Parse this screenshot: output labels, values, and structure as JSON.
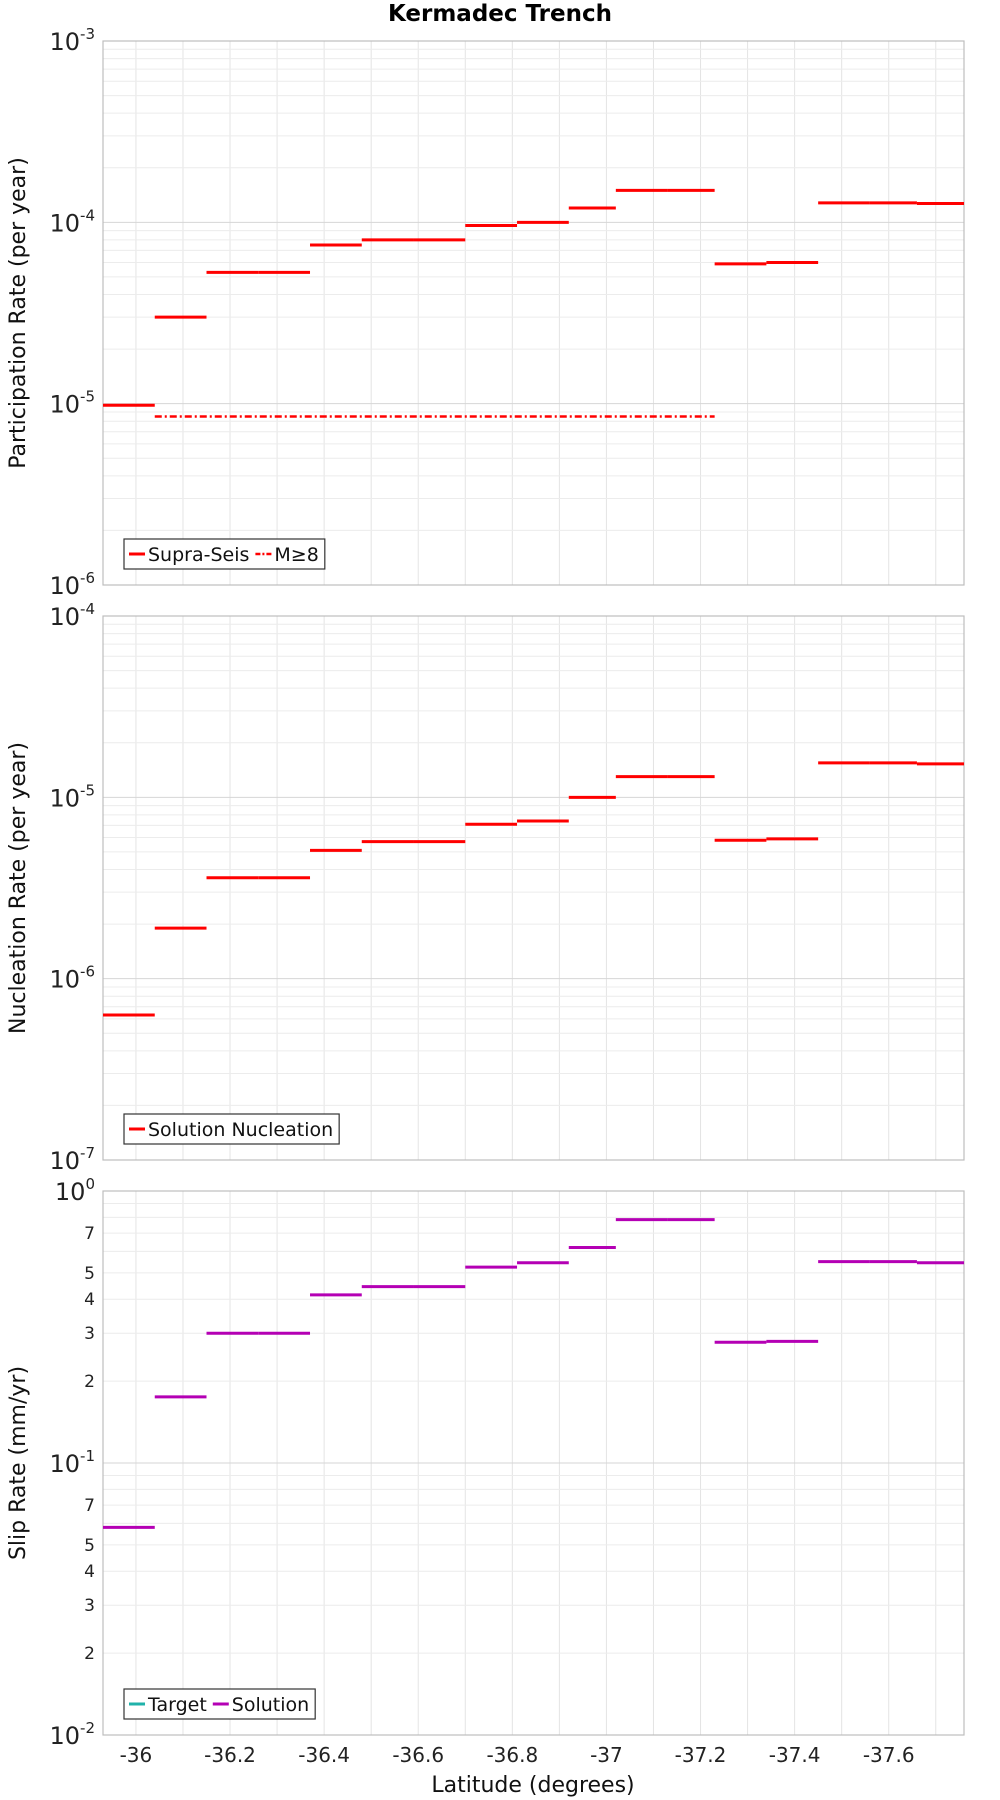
{
  "figure": {
    "title": "Kermadec Trench",
    "xlabel": "Latitude (degrees)"
  },
  "chart_data": [
    {
      "type": "line",
      "subtype": "step",
      "ylabel": "Participation Rate (per year)",
      "yscale": "log",
      "ylim": [
        1e-06,
        0.001
      ],
      "xlim": [
        -35.93,
        -37.76
      ],
      "y_tick_labels": [
        {
          "base": "10",
          "exp": "-6",
          "value": 1e-06
        },
        {
          "base": "10",
          "exp": "-5",
          "value": 1e-05
        },
        {
          "base": "10",
          "exp": "-4",
          "value": 0.0001
        },
        {
          "base": "10",
          "exp": "-3",
          "value": 0.001
        }
      ],
      "legend": [
        {
          "label": "Supra-Seis",
          "color": "#ff0000",
          "style": "solid"
        },
        {
          "label": "M≥8",
          "color": "#ff0000",
          "style": "dashdot"
        }
      ],
      "series": [
        {
          "name": "Supra-Seis",
          "color": "#ff0000",
          "style": "solid",
          "segments": [
            [
              -35.93,
              -36.04,
              9.8e-06
            ],
            [
              -36.04,
              -36.15,
              3e-05
            ],
            [
              -36.15,
              -36.26,
              5.3e-05
            ],
            [
              -36.26,
              -36.37,
              5.3e-05
            ],
            [
              -36.37,
              -36.48,
              7.5e-05
            ],
            [
              -36.48,
              -36.59,
              8e-05
            ],
            [
              -36.59,
              -36.7,
              8e-05
            ],
            [
              -36.7,
              -36.81,
              9.6e-05
            ],
            [
              -36.81,
              -36.92,
              0.0001
            ],
            [
              -36.92,
              -37.02,
              0.00012
            ],
            [
              -37.02,
              -37.13,
              0.00015
            ],
            [
              -37.13,
              -37.23,
              0.00015
            ],
            [
              -37.23,
              -37.34,
              5.9e-05
            ],
            [
              -37.34,
              -37.45,
              6e-05
            ],
            [
              -37.45,
              -37.56,
              0.000128
            ],
            [
              -37.56,
              -37.66,
              0.000128
            ],
            [
              -37.66,
              -37.76,
              0.000127
            ]
          ]
        },
        {
          "name": "M≥8",
          "color": "#ff0000",
          "style": "dashdot",
          "segments": [
            [
              -36.04,
              -37.23,
              8.5e-06
            ]
          ]
        }
      ]
    },
    {
      "type": "line",
      "subtype": "step",
      "ylabel": "Nucleation Rate (per year)",
      "yscale": "log",
      "ylim": [
        1e-07,
        0.0001
      ],
      "xlim": [
        -35.93,
        -37.76
      ],
      "y_tick_labels": [
        {
          "base": "10",
          "exp": "-7",
          "value": 1e-07
        },
        {
          "base": "10",
          "exp": "-6",
          "value": 1e-06
        },
        {
          "base": "10",
          "exp": "-5",
          "value": 1e-05
        },
        {
          "base": "10",
          "exp": "-4",
          "value": 0.0001
        }
      ],
      "legend": [
        {
          "label": "Solution Nucleation",
          "color": "#ff0000",
          "style": "solid"
        }
      ],
      "series": [
        {
          "name": "Solution Nucleation",
          "color": "#ff0000",
          "style": "solid",
          "segments": [
            [
              -35.93,
              -36.04,
              6.3e-07
            ],
            [
              -36.04,
              -36.15,
              1.9e-06
            ],
            [
              -36.15,
              -36.26,
              3.6e-06
            ],
            [
              -36.26,
              -36.37,
              3.6e-06
            ],
            [
              -36.37,
              -36.48,
              5.1e-06
            ],
            [
              -36.48,
              -36.59,
              5.7e-06
            ],
            [
              -36.59,
              -36.7,
              5.7e-06
            ],
            [
              -36.7,
              -36.81,
              7.1e-06
            ],
            [
              -36.81,
              -36.92,
              7.4e-06
            ],
            [
              -36.92,
              -37.02,
              1e-05
            ],
            [
              -37.02,
              -37.13,
              1.3e-05
            ],
            [
              -37.13,
              -37.23,
              1.3e-05
            ],
            [
              -37.23,
              -37.34,
              5.8e-06
            ],
            [
              -37.34,
              -37.45,
              5.9e-06
            ],
            [
              -37.45,
              -37.56,
              1.55e-05
            ],
            [
              -37.56,
              -37.66,
              1.55e-05
            ],
            [
              -37.66,
              -37.76,
              1.53e-05
            ]
          ]
        }
      ]
    },
    {
      "type": "line",
      "subtype": "step",
      "ylabel": "Slip Rate (mm/yr)",
      "yscale": "log",
      "ylim": [
        0.01,
        1
      ],
      "xlim": [
        -35.93,
        -37.76
      ],
      "x_ticks": [
        {
          "label": "-36",
          "value": -36.0
        },
        {
          "label": "-36.2",
          "value": -36.2
        },
        {
          "label": "-36.4",
          "value": -36.4
        },
        {
          "label": "-36.6",
          "value": -36.6
        },
        {
          "label": "-36.8",
          "value": -36.8
        },
        {
          "label": "-37",
          "value": -37.0
        },
        {
          "label": "-37.2",
          "value": -37.2
        },
        {
          "label": "-37.4",
          "value": -37.4
        },
        {
          "label": "-37.6",
          "value": -37.6
        }
      ],
      "y_tick_labels": [
        {
          "base": "10",
          "exp": "-2",
          "value": 0.01
        },
        {
          "base": "10",
          "exp": "-1",
          "value": 0.1
        },
        {
          "base": "10",
          "exp": "0",
          "value": 1
        }
      ],
      "y_minor_labels": [
        {
          "label": "2",
          "value": 0.02
        },
        {
          "label": "3",
          "value": 0.03
        },
        {
          "label": "4",
          "value": 0.04
        },
        {
          "label": "5",
          "value": 0.05
        },
        {
          "label": "7",
          "value": 0.07
        },
        {
          "label": "2",
          "value": 0.2
        },
        {
          "label": "3",
          "value": 0.3
        },
        {
          "label": "4",
          "value": 0.4
        },
        {
          "label": "5",
          "value": 0.5
        },
        {
          "label": "7",
          "value": 0.7
        }
      ],
      "legend": [
        {
          "label": "Target",
          "color": "#20b2aa",
          "style": "solid"
        },
        {
          "label": "Solution",
          "color": "#b400b4",
          "style": "solid"
        }
      ],
      "series": [
        {
          "name": "Solution",
          "color": "#b400b4",
          "style": "solid",
          "segments": [
            [
              -35.93,
              -36.04,
              0.058
            ],
            [
              -36.04,
              -36.15,
              0.175
            ],
            [
              -36.15,
              -36.26,
              0.3
            ],
            [
              -36.26,
              -36.37,
              0.3
            ],
            [
              -36.37,
              -36.48,
              0.415
            ],
            [
              -36.48,
              -36.59,
              0.445
            ],
            [
              -36.59,
              -36.7,
              0.445
            ],
            [
              -36.7,
              -36.81,
              0.525
            ],
            [
              -36.81,
              -36.92,
              0.545
            ],
            [
              -36.92,
              -37.02,
              0.62
            ],
            [
              -37.02,
              -37.13,
              0.785
            ],
            [
              -37.13,
              -37.23,
              0.785
            ],
            [
              -37.23,
              -37.34,
              0.278
            ],
            [
              -37.34,
              -37.45,
              0.28
            ],
            [
              -37.45,
              -37.56,
              0.55
            ],
            [
              -37.56,
              -37.66,
              0.55
            ],
            [
              -37.66,
              -37.76,
              0.545
            ]
          ]
        }
      ]
    }
  ]
}
